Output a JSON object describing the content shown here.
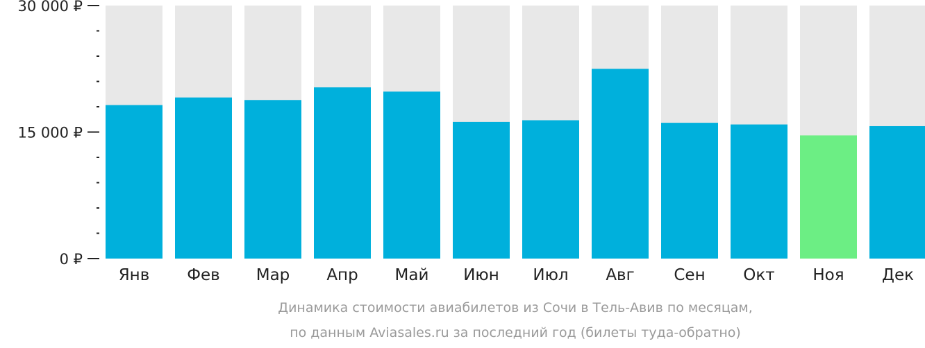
{
  "chart_data": {
    "type": "bar",
    "categories": [
      "Янв",
      "Фев",
      "Мар",
      "Апр",
      "Май",
      "Июн",
      "Июл",
      "Авг",
      "Сен",
      "Окт",
      "Ноя",
      "Дек"
    ],
    "values": [
      18200,
      19100,
      18800,
      20300,
      19800,
      16200,
      16400,
      22500,
      16100,
      15900,
      14600,
      15700
    ],
    "highlight_index": 10,
    "ylim": [
      0,
      30000
    ],
    "yticks": [
      {
        "value": 0,
        "label": "0 ₽"
      },
      {
        "value": 15000,
        "label": "15 000 ₽"
      },
      {
        "value": 30000,
        "label": "30 000 ₽"
      }
    ],
    "minor_tick_step": 3000,
    "title": "",
    "xlabel": "",
    "ylabel": "",
    "grid": false,
    "legend": "none",
    "colors": {
      "bar": "#00B0DC",
      "highlight": "#6CEE84",
      "track": "#E8E8E8",
      "axis": "#222222",
      "caption": "#9A9A9A"
    }
  },
  "caption": {
    "line1": "Динамика стоимости авиабилетов из Сочи в Тель-Авив по месяцам,",
    "line2": "по данным Aviasales.ru за последний год (билеты туда-обратно)"
  }
}
